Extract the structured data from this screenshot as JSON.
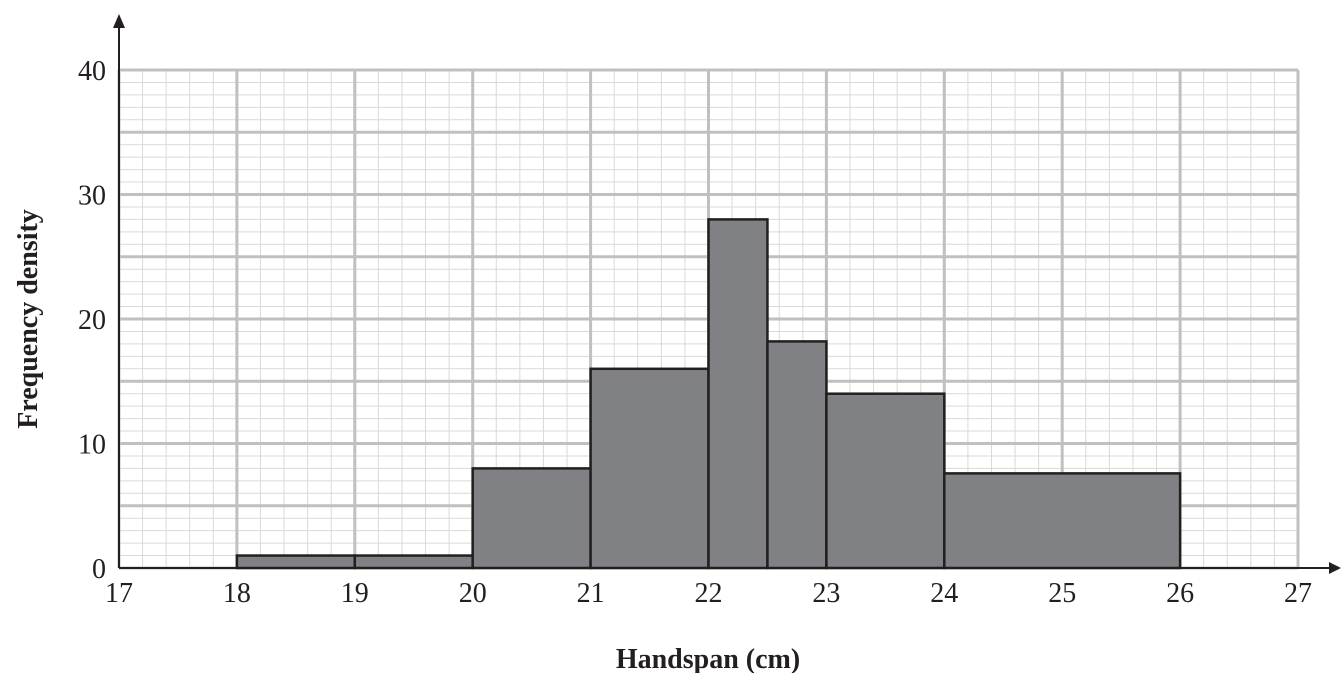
{
  "chart_data": {
    "type": "histogram",
    "xlabel": "Handspan (cm)",
    "ylabel": "Frequency density",
    "xlim": [
      17,
      27
    ],
    "ylim": [
      0,
      40
    ],
    "x_ticks": [
      "17",
      "18",
      "19",
      "20",
      "21",
      "22",
      "23",
      "24",
      "25",
      "26",
      "27"
    ],
    "y_ticks": [
      "0",
      "10",
      "20",
      "30",
      "40"
    ],
    "grid": true,
    "bins": [
      {
        "from": 18,
        "to": 19,
        "frequency_density": 1
      },
      {
        "from": 19,
        "to": 20,
        "frequency_density": 1
      },
      {
        "from": 20,
        "to": 21,
        "frequency_density": 8
      },
      {
        "from": 21,
        "to": 22,
        "frequency_density": 16
      },
      {
        "from": 22,
        "to": 22.5,
        "frequency_density": 28
      },
      {
        "from": 22.5,
        "to": 23,
        "frequency_density": 18.2
      },
      {
        "from": 23,
        "to": 24,
        "frequency_density": 14
      },
      {
        "from": 24,
        "to": 26,
        "frequency_density": 7.6
      }
    ]
  },
  "colors": {
    "bar_fill": "#808184",
    "bar_stroke": "#231f20",
    "major_grid": "#c0c0c0",
    "minor_grid": "#d9d9d9",
    "axis": "#231f20",
    "text": "#231f20"
  }
}
